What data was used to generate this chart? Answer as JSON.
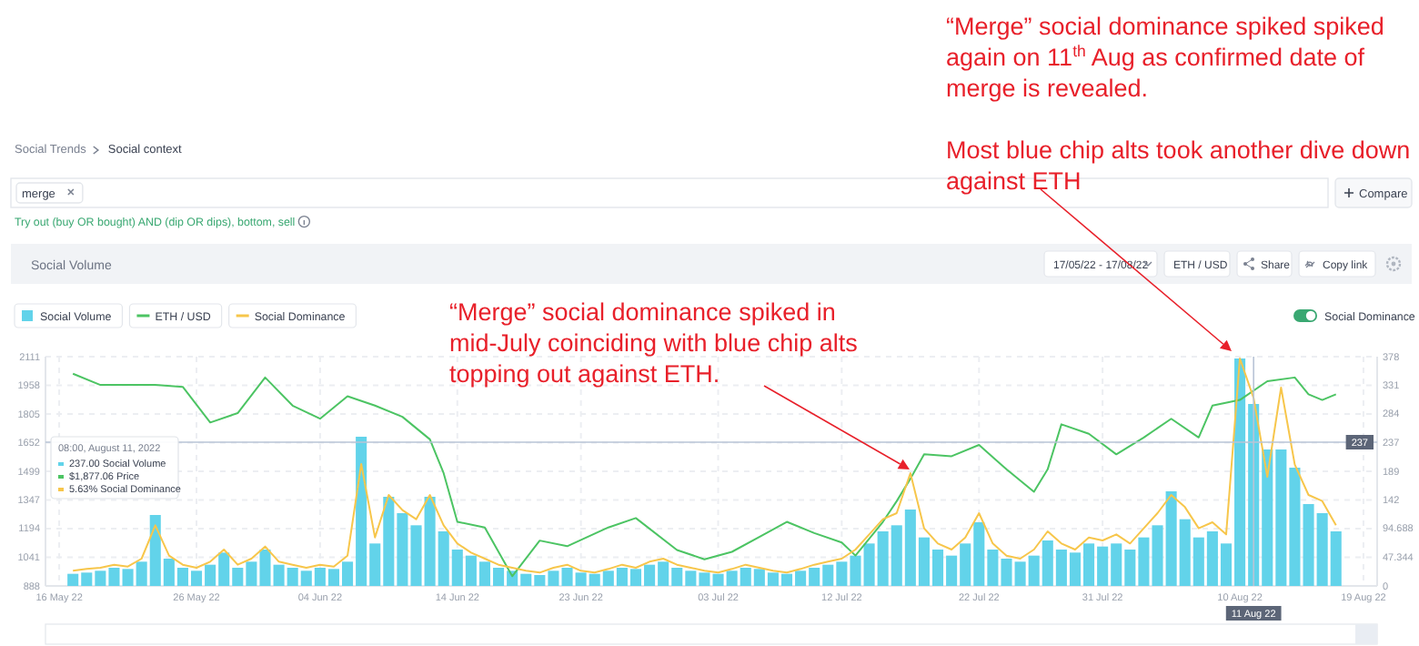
{
  "chart_data": {
    "type": "bar",
    "title": "Social Volume",
    "x": [
      "2022-05-17",
      "2022-05-18",
      "2022-05-19",
      "2022-05-20",
      "2022-05-21",
      "2022-05-22",
      "2022-05-23",
      "2022-05-24",
      "2022-05-25",
      "2022-05-26",
      "2022-05-27",
      "2022-05-28",
      "2022-05-29",
      "2022-05-30",
      "2022-05-31",
      "2022-06-01",
      "2022-06-02",
      "2022-06-03",
      "2022-06-04",
      "2022-06-05",
      "2022-06-06",
      "2022-06-07",
      "2022-06-08",
      "2022-06-09",
      "2022-06-10",
      "2022-06-11",
      "2022-06-12",
      "2022-06-13",
      "2022-06-14",
      "2022-06-15",
      "2022-06-16",
      "2022-06-17",
      "2022-06-18",
      "2022-06-19",
      "2022-06-20",
      "2022-06-21",
      "2022-06-22",
      "2022-06-23",
      "2022-06-24",
      "2022-06-25",
      "2022-06-26",
      "2022-06-27",
      "2022-06-28",
      "2022-06-29",
      "2022-06-30",
      "2022-07-01",
      "2022-07-02",
      "2022-07-03",
      "2022-07-04",
      "2022-07-05",
      "2022-07-06",
      "2022-07-07",
      "2022-07-08",
      "2022-07-09",
      "2022-07-10",
      "2022-07-11",
      "2022-07-12",
      "2022-07-13",
      "2022-07-14",
      "2022-07-15",
      "2022-07-16",
      "2022-07-17",
      "2022-07-18",
      "2022-07-19",
      "2022-07-20",
      "2022-07-21",
      "2022-07-22",
      "2022-07-23",
      "2022-07-24",
      "2022-07-25",
      "2022-07-26",
      "2022-07-27",
      "2022-07-28",
      "2022-07-29",
      "2022-07-30",
      "2022-07-31",
      "2022-08-01",
      "2022-08-02",
      "2022-08-03",
      "2022-08-04",
      "2022-08-05",
      "2022-08-06",
      "2022-08-07",
      "2022-08-08",
      "2022-08-09",
      "2022-08-10",
      "2022-08-11",
      "2022-08-12",
      "2022-08-13",
      "2022-08-14",
      "2022-08-15",
      "2022-08-16",
      "2022-08-17"
    ],
    "series": [
      {
        "name": "Social Volume",
        "axis": "y2",
        "color": "#62d3ea",
        "values": [
          20,
          22,
          25,
          30,
          28,
          40,
          117,
          45,
          30,
          25,
          35,
          55,
          30,
          40,
          60,
          35,
          30,
          25,
          30,
          28,
          40,
          246,
          70,
          147,
          120,
          100,
          147,
          90,
          60,
          50,
          40,
          30,
          25,
          20,
          18,
          25,
          30,
          22,
          20,
          25,
          30,
          28,
          35,
          40,
          30,
          25,
          22,
          20,
          25,
          30,
          28,
          22,
          20,
          25,
          30,
          35,
          40,
          50,
          70,
          90,
          100,
          126,
          80,
          60,
          50,
          70,
          105,
          60,
          45,
          40,
          50,
          75,
          60,
          55,
          70,
          65,
          70,
          60,
          80,
          100,
          156,
          110,
          80,
          90,
          70,
          375,
          300,
          225,
          225,
          195,
          135,
          120,
          90
        ]
      },
      {
        "name": "ETH / USD",
        "type": "line",
        "color": "#4cc463",
        "x": [
          "2022-05-17",
          "2022-05-19",
          "2022-05-21",
          "2022-05-23",
          "2022-05-25",
          "2022-05-27",
          "2022-05-29",
          "2022-05-31",
          "2022-06-02",
          "2022-06-04",
          "2022-06-06",
          "2022-06-08",
          "2022-06-10",
          "2022-06-12",
          "2022-06-13",
          "2022-06-14",
          "2022-06-16",
          "2022-06-18",
          "2022-06-20",
          "2022-06-22",
          "2022-06-25",
          "2022-06-27",
          "2022-06-30",
          "2022-07-02",
          "2022-07-04",
          "2022-07-06",
          "2022-07-08",
          "2022-07-10",
          "2022-07-12",
          "2022-07-13",
          "2022-07-15",
          "2022-07-16",
          "2022-07-17",
          "2022-07-18",
          "2022-07-20",
          "2022-07-22",
          "2022-07-24",
          "2022-07-26",
          "2022-07-27",
          "2022-07-28",
          "2022-07-30",
          "2022-08-01",
          "2022-08-03",
          "2022-08-05",
          "2022-08-07",
          "2022-08-08",
          "2022-08-10",
          "2022-08-12",
          "2022-08-14",
          "2022-08-15",
          "2022-08-16",
          "2022-08-17"
        ],
        "values": [
          2020,
          1960,
          1960,
          1960,
          1950,
          1760,
          1810,
          2000,
          1850,
          1780,
          1900,
          1850,
          1790,
          1670,
          1490,
          1230,
          1200,
          940,
          1130,
          1100,
          1200,
          1250,
          1080,
          1030,
          1070,
          1150,
          1230,
          1170,
          1120,
          1050,
          1230,
          1340,
          1460,
          1590,
          1580,
          1640,
          1510,
          1390,
          1510,
          1750,
          1700,
          1590,
          1680,
          1780,
          1680,
          1850,
          1880,
          1980,
          2000,
          1910,
          1880,
          1910
        ]
      },
      {
        "name": "Social Dominance",
        "type": "line",
        "axis": "y2",
        "color": "#f7c64b",
        "values": [
          25,
          28,
          30,
          35,
          32,
          45,
          100,
          50,
          35,
          30,
          40,
          60,
          35,
          45,
          65,
          40,
          35,
          30,
          35,
          32,
          50,
          201,
          80,
          150,
          125,
          110,
          150,
          100,
          70,
          55,
          45,
          35,
          30,
          25,
          22,
          30,
          35,
          25,
          22,
          28,
          35,
          30,
          40,
          45,
          35,
          30,
          25,
          22,
          28,
          35,
          30,
          25,
          22,
          28,
          35,
          40,
          45,
          60,
          85,
          110,
          120,
          186,
          95,
          70,
          60,
          80,
          120,
          70,
          50,
          45,
          60,
          90,
          70,
          60,
          80,
          75,
          85,
          70,
          95,
          120,
          150,
          130,
          95,
          105,
          85,
          375,
          310,
          180,
          327,
          200,
          150,
          140,
          100
        ]
      }
    ],
    "xlim": [
      "2022-05-15",
      "2022-08-20"
    ],
    "xticks": [
      {
        "value": "2022-05-16",
        "label": "16 May 22"
      },
      {
        "value": "2022-05-26",
        "label": "26 May 22"
      },
      {
        "value": "2022-06-04",
        "label": "04 Jun 22"
      },
      {
        "value": "2022-06-14",
        "label": "14 Jun 22"
      },
      {
        "value": "2022-06-23",
        "label": "23 Jun 22"
      },
      {
        "value": "2022-07-03",
        "label": "03 Jul 22"
      },
      {
        "value": "2022-07-12",
        "label": "12 Jul 22"
      },
      {
        "value": "2022-07-22",
        "label": "22 Jul 22"
      },
      {
        "value": "2022-07-31",
        "label": "31 Jul 22"
      },
      {
        "value": "2022-08-10",
        "label": "10 Aug 22"
      },
      {
        "value": "2022-08-19",
        "label": "19 Aug 22"
      }
    ],
    "ylim": [
      888,
      2111
    ],
    "yticks": [
      888,
      1041,
      1194,
      1347,
      1499,
      1652,
      1805,
      1958,
      2111
    ],
    "y2lim": [
      0,
      378
    ],
    "y2ticks": [
      0,
      47.344,
      94.688,
      142,
      189,
      237,
      284,
      331,
      378
    ],
    "ref_lines": [
      {
        "axis": "y2",
        "value": 237,
        "label": "237",
        "color": "#b8c4d6"
      },
      {
        "axis": "x",
        "value": "2022-08-11",
        "label": "11 Aug 22",
        "color": "#b8c4d6"
      }
    ],
    "grid": true,
    "legend": "top left",
    "annotations": [
      "“Merge” social dominance spiked spiked again on 11$^{th}$ Aug as confirmed date of merge is revealed.",
      "Most blue chip alts took another dive down against ETH",
      "“Merge” social dominance spiked in mid-July coinciding with blue chip alts topping out against ETH.",
      "Social Trends",
      "Social context",
      "merge",
      "Try out (buy OR bought) AND (dip OR dips), bottom, sell",
      "Compare",
      "17/05/22 - 17/08/22",
      "ETH / USD",
      "Share",
      "Copy link",
      "Social Dominance",
      "08:00, August 11, 2022",
      "237.00 Social Volume",
      "$1,877.06 Price",
      "5.63% Social Dominance"
    ]
  }
}
